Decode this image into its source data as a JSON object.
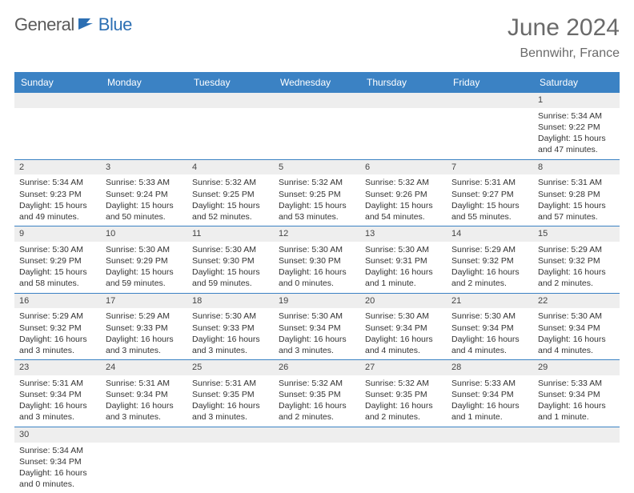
{
  "branding": {
    "part1": "General",
    "part2": "Blue"
  },
  "title": "June 2024",
  "location": "Bennwihr, France",
  "colors": {
    "header_bg": "#3b82c4",
    "header_text": "#ffffff",
    "daynum_bg": "#eeeeee",
    "rule": "#3b82c4",
    "logo_blue": "#2c6fb3",
    "logo_gray": "#5a5a5a"
  },
  "weekdays": [
    "Sunday",
    "Monday",
    "Tuesday",
    "Wednesday",
    "Thursday",
    "Friday",
    "Saturday"
  ],
  "weeks": [
    [
      null,
      null,
      null,
      null,
      null,
      null,
      {
        "n": "1",
        "sr": "Sunrise: 5:34 AM",
        "ss": "Sunset: 9:22 PM",
        "d1": "Daylight: 15 hours",
        "d2": "and 47 minutes."
      }
    ],
    [
      {
        "n": "2",
        "sr": "Sunrise: 5:34 AM",
        "ss": "Sunset: 9:23 PM",
        "d1": "Daylight: 15 hours",
        "d2": "and 49 minutes."
      },
      {
        "n": "3",
        "sr": "Sunrise: 5:33 AM",
        "ss": "Sunset: 9:24 PM",
        "d1": "Daylight: 15 hours",
        "d2": "and 50 minutes."
      },
      {
        "n": "4",
        "sr": "Sunrise: 5:32 AM",
        "ss": "Sunset: 9:25 PM",
        "d1": "Daylight: 15 hours",
        "d2": "and 52 minutes."
      },
      {
        "n": "5",
        "sr": "Sunrise: 5:32 AM",
        "ss": "Sunset: 9:25 PM",
        "d1": "Daylight: 15 hours",
        "d2": "and 53 minutes."
      },
      {
        "n": "6",
        "sr": "Sunrise: 5:32 AM",
        "ss": "Sunset: 9:26 PM",
        "d1": "Daylight: 15 hours",
        "d2": "and 54 minutes."
      },
      {
        "n": "7",
        "sr": "Sunrise: 5:31 AM",
        "ss": "Sunset: 9:27 PM",
        "d1": "Daylight: 15 hours",
        "d2": "and 55 minutes."
      },
      {
        "n": "8",
        "sr": "Sunrise: 5:31 AM",
        "ss": "Sunset: 9:28 PM",
        "d1": "Daylight: 15 hours",
        "d2": "and 57 minutes."
      }
    ],
    [
      {
        "n": "9",
        "sr": "Sunrise: 5:30 AM",
        "ss": "Sunset: 9:29 PM",
        "d1": "Daylight: 15 hours",
        "d2": "and 58 minutes."
      },
      {
        "n": "10",
        "sr": "Sunrise: 5:30 AM",
        "ss": "Sunset: 9:29 PM",
        "d1": "Daylight: 15 hours",
        "d2": "and 59 minutes."
      },
      {
        "n": "11",
        "sr": "Sunrise: 5:30 AM",
        "ss": "Sunset: 9:30 PM",
        "d1": "Daylight: 15 hours",
        "d2": "and 59 minutes."
      },
      {
        "n": "12",
        "sr": "Sunrise: 5:30 AM",
        "ss": "Sunset: 9:30 PM",
        "d1": "Daylight: 16 hours",
        "d2": "and 0 minutes."
      },
      {
        "n": "13",
        "sr": "Sunrise: 5:30 AM",
        "ss": "Sunset: 9:31 PM",
        "d1": "Daylight: 16 hours",
        "d2": "and 1 minute."
      },
      {
        "n": "14",
        "sr": "Sunrise: 5:29 AM",
        "ss": "Sunset: 9:32 PM",
        "d1": "Daylight: 16 hours",
        "d2": "and 2 minutes."
      },
      {
        "n": "15",
        "sr": "Sunrise: 5:29 AM",
        "ss": "Sunset: 9:32 PM",
        "d1": "Daylight: 16 hours",
        "d2": "and 2 minutes."
      }
    ],
    [
      {
        "n": "16",
        "sr": "Sunrise: 5:29 AM",
        "ss": "Sunset: 9:32 PM",
        "d1": "Daylight: 16 hours",
        "d2": "and 3 minutes."
      },
      {
        "n": "17",
        "sr": "Sunrise: 5:29 AM",
        "ss": "Sunset: 9:33 PM",
        "d1": "Daylight: 16 hours",
        "d2": "and 3 minutes."
      },
      {
        "n": "18",
        "sr": "Sunrise: 5:30 AM",
        "ss": "Sunset: 9:33 PM",
        "d1": "Daylight: 16 hours",
        "d2": "and 3 minutes."
      },
      {
        "n": "19",
        "sr": "Sunrise: 5:30 AM",
        "ss": "Sunset: 9:34 PM",
        "d1": "Daylight: 16 hours",
        "d2": "and 3 minutes."
      },
      {
        "n": "20",
        "sr": "Sunrise: 5:30 AM",
        "ss": "Sunset: 9:34 PM",
        "d1": "Daylight: 16 hours",
        "d2": "and 4 minutes."
      },
      {
        "n": "21",
        "sr": "Sunrise: 5:30 AM",
        "ss": "Sunset: 9:34 PM",
        "d1": "Daylight: 16 hours",
        "d2": "and 4 minutes."
      },
      {
        "n": "22",
        "sr": "Sunrise: 5:30 AM",
        "ss": "Sunset: 9:34 PM",
        "d1": "Daylight: 16 hours",
        "d2": "and 4 minutes."
      }
    ],
    [
      {
        "n": "23",
        "sr": "Sunrise: 5:31 AM",
        "ss": "Sunset: 9:34 PM",
        "d1": "Daylight: 16 hours",
        "d2": "and 3 minutes."
      },
      {
        "n": "24",
        "sr": "Sunrise: 5:31 AM",
        "ss": "Sunset: 9:34 PM",
        "d1": "Daylight: 16 hours",
        "d2": "and 3 minutes."
      },
      {
        "n": "25",
        "sr": "Sunrise: 5:31 AM",
        "ss": "Sunset: 9:35 PM",
        "d1": "Daylight: 16 hours",
        "d2": "and 3 minutes."
      },
      {
        "n": "26",
        "sr": "Sunrise: 5:32 AM",
        "ss": "Sunset: 9:35 PM",
        "d1": "Daylight: 16 hours",
        "d2": "and 2 minutes."
      },
      {
        "n": "27",
        "sr": "Sunrise: 5:32 AM",
        "ss": "Sunset: 9:35 PM",
        "d1": "Daylight: 16 hours",
        "d2": "and 2 minutes."
      },
      {
        "n": "28",
        "sr": "Sunrise: 5:33 AM",
        "ss": "Sunset: 9:34 PM",
        "d1": "Daylight: 16 hours",
        "d2": "and 1 minute."
      },
      {
        "n": "29",
        "sr": "Sunrise: 5:33 AM",
        "ss": "Sunset: 9:34 PM",
        "d1": "Daylight: 16 hours",
        "d2": "and 1 minute."
      }
    ],
    [
      {
        "n": "30",
        "sr": "Sunrise: 5:34 AM",
        "ss": "Sunset: 9:34 PM",
        "d1": "Daylight: 16 hours",
        "d2": "and 0 minutes."
      },
      null,
      null,
      null,
      null,
      null,
      null
    ]
  ]
}
